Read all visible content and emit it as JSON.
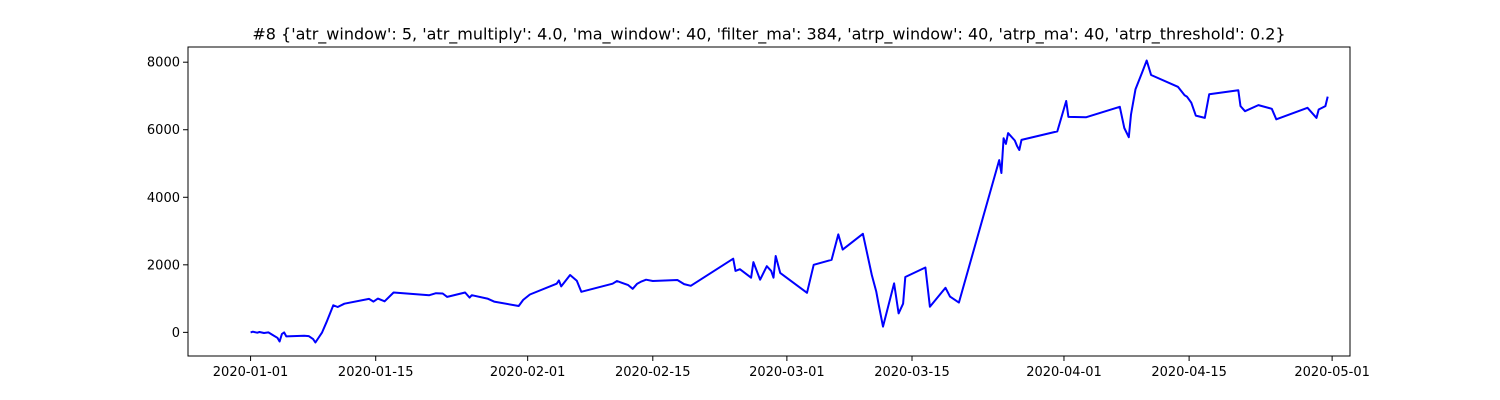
{
  "chart_data": {
    "type": "line",
    "title": "#8 {'atr_window': 5, 'atr_multiply': 4.0, 'ma_window': 40, 'filter_ma': 384, 'atrp_window': 40, 'atrp_ma': 40, 'atrp_threshold': 0.2}",
    "xlabel": "",
    "ylabel": "",
    "x_axis_type": "date",
    "xlim": [
      "2019-12-25",
      "2020-05-03"
    ],
    "ylim": [
      -700,
      8450
    ],
    "x_ticks": [
      "2020-01-01",
      "2020-01-15",
      "2020-02-01",
      "2020-02-15",
      "2020-03-01",
      "2020-03-15",
      "2020-04-01",
      "2020-04-15",
      "2020-05-01"
    ],
    "y_ticks": [
      0,
      2000,
      4000,
      6000,
      8000
    ],
    "grid": false,
    "line_color": "#0000ff",
    "series": [
      {
        "points": [
          [
            "2020-01-01 00:00",
            0
          ],
          [
            "2020-01-01 06:00",
            20
          ],
          [
            "2020-01-01 18:00",
            -10
          ],
          [
            "2020-01-02 00:00",
            10
          ],
          [
            "2020-01-02 12:00",
            -20
          ],
          [
            "2020-01-03 00:00",
            0
          ],
          [
            "2020-01-03 12:00",
            -80
          ],
          [
            "2020-01-04 00:00",
            -160
          ],
          [
            "2020-01-04 06:00",
            -270
          ],
          [
            "2020-01-04 12:00",
            -50
          ],
          [
            "2020-01-04 18:00",
            0
          ],
          [
            "2020-01-05 00:00",
            -120
          ],
          [
            "2020-01-07 00:00",
            -100
          ],
          [
            "2020-01-07 12:00",
            -110
          ],
          [
            "2020-01-08 00:00",
            -200
          ],
          [
            "2020-01-08 06:00",
            -300
          ],
          [
            "2020-01-09 00:00",
            0
          ],
          [
            "2020-01-09 12:00",
            300
          ],
          [
            "2020-01-10 06:00",
            800
          ],
          [
            "2020-01-10 18:00",
            750
          ],
          [
            "2020-01-11 12:00",
            850
          ],
          [
            "2020-01-14 06:00",
            990
          ],
          [
            "2020-01-14 18:00",
            910
          ],
          [
            "2020-01-15 06:00",
            1000
          ],
          [
            "2020-01-16 00:00",
            920
          ],
          [
            "2020-01-17 00:00",
            1180
          ],
          [
            "2020-01-21 00:00",
            1100
          ],
          [
            "2020-01-21 18:00",
            1160
          ],
          [
            "2020-01-22 12:00",
            1150
          ],
          [
            "2020-01-23 00:00",
            1050
          ],
          [
            "2020-01-25 00:00",
            1180
          ],
          [
            "2020-01-25 12:00",
            1030
          ],
          [
            "2020-01-25 18:00",
            1100
          ],
          [
            "2020-01-27 12:00",
            1000
          ],
          [
            "2020-01-28 06:00",
            910
          ],
          [
            "2020-01-31 00:00",
            780
          ],
          [
            "2020-01-31 12:00",
            960
          ],
          [
            "2020-02-01 06:00",
            1120
          ],
          [
            "2020-02-04 06:00",
            1440
          ],
          [
            "2020-02-04 12:00",
            1540
          ],
          [
            "2020-02-04 18:00",
            1360
          ],
          [
            "2020-02-05 18:00",
            1700
          ],
          [
            "2020-02-06 12:00",
            1530
          ],
          [
            "2020-02-07 00:00",
            1200
          ],
          [
            "2020-02-10 12:00",
            1440
          ],
          [
            "2020-02-11 00:00",
            1520
          ],
          [
            "2020-02-11 12:00",
            1470
          ],
          [
            "2020-02-12 06:00",
            1400
          ],
          [
            "2020-02-12 18:00",
            1290
          ],
          [
            "2020-02-13 06:00",
            1440
          ],
          [
            "2020-02-13 18:00",
            1510
          ],
          [
            "2020-02-14 06:00",
            1560
          ],
          [
            "2020-02-15 00:00",
            1520
          ],
          [
            "2020-02-17 18:00",
            1550
          ],
          [
            "2020-02-18 12:00",
            1430
          ],
          [
            "2020-02-19 06:00",
            1380
          ],
          [
            "2020-02-24 00:00",
            2180
          ],
          [
            "2020-02-24 06:00",
            1820
          ],
          [
            "2020-02-24 18:00",
            1870
          ],
          [
            "2020-02-26 00:00",
            1620
          ],
          [
            "2020-02-26 06:00",
            2080
          ],
          [
            "2020-02-27 00:00",
            1560
          ],
          [
            "2020-02-27 18:00",
            1960
          ],
          [
            "2020-02-28 06:00",
            1820
          ],
          [
            "2020-02-28 12:00",
            1620
          ],
          [
            "2020-02-28 18:00",
            2260
          ],
          [
            "2020-02-29 06:00",
            1760
          ],
          [
            "2020-03-03 06:00",
            1170
          ],
          [
            "2020-03-04 00:00",
            2000
          ],
          [
            "2020-03-06 00:00",
            2150
          ],
          [
            "2020-03-06 18:00",
            2900
          ],
          [
            "2020-03-07 06:00",
            2450
          ],
          [
            "2020-03-09 12:00",
            2920
          ],
          [
            "2020-03-10 12:00",
            1700
          ],
          [
            "2020-03-11 00:00",
            1200
          ],
          [
            "2020-03-11 06:00",
            850
          ],
          [
            "2020-03-11 18:00",
            170
          ],
          [
            "2020-03-13 00:00",
            1450
          ],
          [
            "2020-03-13 12:00",
            560
          ],
          [
            "2020-03-14 00:00",
            850
          ],
          [
            "2020-03-14 06:00",
            1640
          ],
          [
            "2020-03-16 12:00",
            1920
          ],
          [
            "2020-03-17 00:00",
            760
          ],
          [
            "2020-03-18 18:00",
            1320
          ],
          [
            "2020-03-19 06:00",
            1060
          ],
          [
            "2020-03-20 06:00",
            880
          ],
          [
            "2020-03-24 18:00",
            5100
          ],
          [
            "2020-03-25 00:00",
            4720
          ],
          [
            "2020-03-25 06:00",
            5750
          ],
          [
            "2020-03-25 12:00",
            5580
          ],
          [
            "2020-03-25 18:00",
            5900
          ],
          [
            "2020-03-26 12:00",
            5680
          ],
          [
            "2020-03-26 18:00",
            5520
          ],
          [
            "2020-03-27 00:00",
            5400
          ],
          [
            "2020-03-27 06:00",
            5700
          ],
          [
            "2020-03-31 06:00",
            5950
          ],
          [
            "2020-04-01 06:00",
            6850
          ],
          [
            "2020-04-01 12:00",
            6380
          ],
          [
            "2020-04-03 12:00",
            6370
          ],
          [
            "2020-04-07 06:00",
            6680
          ],
          [
            "2020-04-07 18:00",
            6050
          ],
          [
            "2020-04-08 06:00",
            5780
          ],
          [
            "2020-04-08 12:00",
            6450
          ],
          [
            "2020-04-09 00:00",
            7200
          ],
          [
            "2020-04-09 18:00",
            7700
          ],
          [
            "2020-04-10 06:00",
            8050
          ],
          [
            "2020-04-10 18:00",
            7620
          ],
          [
            "2020-04-13 18:00",
            7270
          ],
          [
            "2020-04-14 12:00",
            7020
          ],
          [
            "2020-04-14 18:00",
            6980
          ],
          [
            "2020-04-15 06:00",
            6800
          ],
          [
            "2020-04-15 18:00",
            6420
          ],
          [
            "2020-04-16 18:00",
            6350
          ],
          [
            "2020-04-17 06:00",
            7050
          ],
          [
            "2020-04-20 12:00",
            7170
          ],
          [
            "2020-04-20 18:00",
            6700
          ],
          [
            "2020-04-21 06:00",
            6550
          ],
          [
            "2020-04-22 18:00",
            6730
          ],
          [
            "2020-04-24 06:00",
            6620
          ],
          [
            "2020-04-24 18:00",
            6310
          ],
          [
            "2020-04-28 06:00",
            6650
          ],
          [
            "2020-04-29 06:00",
            6350
          ],
          [
            "2020-04-29 12:00",
            6600
          ],
          [
            "2020-04-30 06:00",
            6700
          ],
          [
            "2020-04-30 12:00",
            6980
          ]
        ]
      }
    ]
  }
}
